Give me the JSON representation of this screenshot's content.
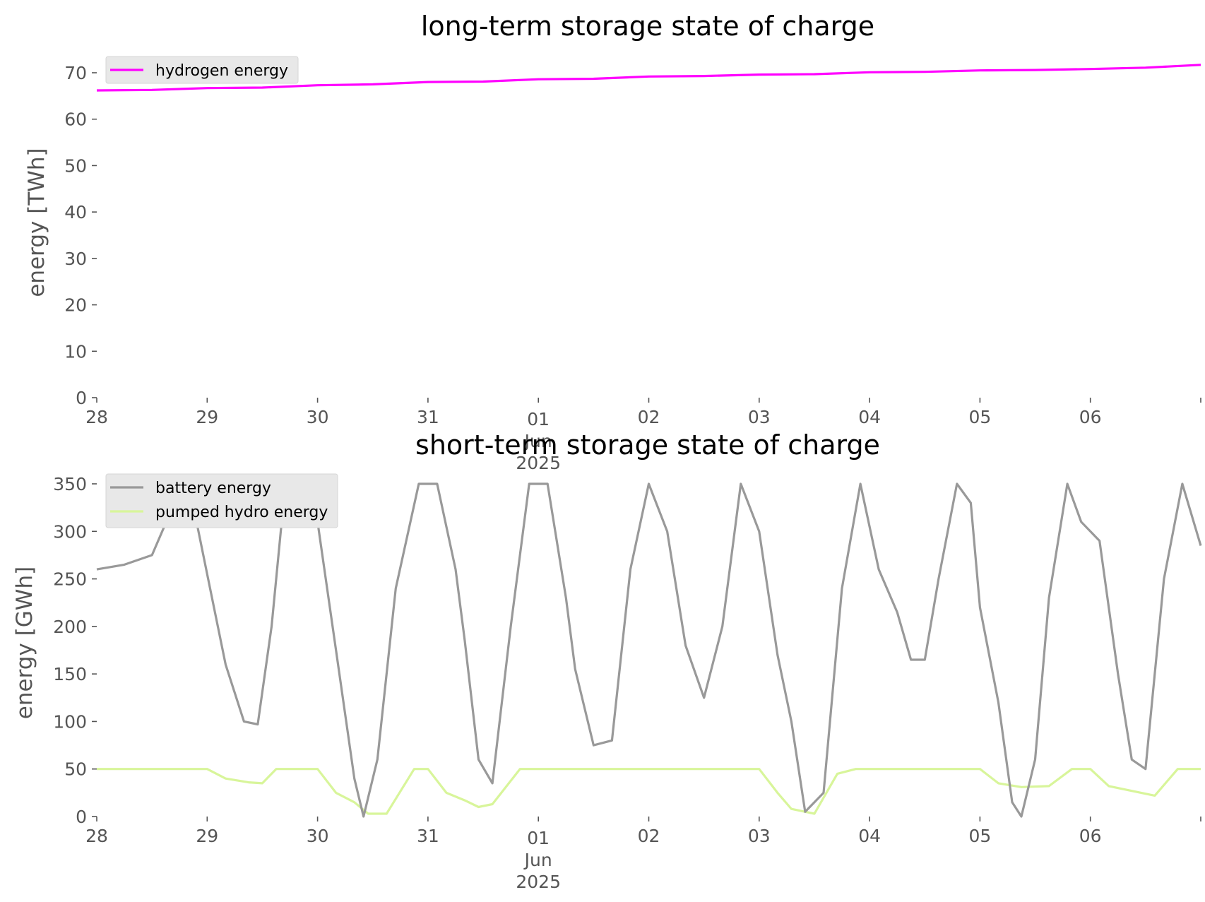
{
  "chart_data": [
    {
      "type": "line",
      "title": "long-term storage state of charge",
      "ylabel": "energy [TWh]",
      "ylim": [
        0,
        70
      ],
      "yticks": [
        "0",
        "10",
        "20",
        "30",
        "40",
        "50",
        "60",
        "70"
      ],
      "xlim": [
        "2025-05-28",
        "2025-06-07"
      ],
      "xticks": [
        "28",
        "29",
        "30",
        "31",
        "01",
        "02",
        "03",
        "04",
        "05",
        "06"
      ],
      "xtick_sublabel": [
        "Jun",
        "2025"
      ],
      "grid": false,
      "legend": "top-left",
      "series": [
        {
          "name": "hydrogen energy",
          "color": "#ff00ff",
          "x": [
            "2025-05-28 00:00",
            "2025-05-28 12:00",
            "2025-05-29 00:00",
            "2025-05-29 12:00",
            "2025-05-30 00:00",
            "2025-05-30 12:00",
            "2025-05-31 00:00",
            "2025-05-31 12:00",
            "2025-06-01 00:00",
            "2025-06-01 12:00",
            "2025-06-02 00:00",
            "2025-06-02 12:00",
            "2025-06-03 00:00",
            "2025-06-03 12:00",
            "2025-06-04 00:00",
            "2025-06-04 12:00",
            "2025-06-05 00:00",
            "2025-06-05 12:00",
            "2025-06-06 00:00",
            "2025-06-06 12:00",
            "2025-06-07 00:00"
          ],
          "y": [
            66.2,
            66.3,
            66.7,
            66.8,
            67.3,
            67.5,
            68.0,
            68.1,
            68.6,
            68.7,
            69.2,
            69.3,
            69.6,
            69.7,
            70.1,
            70.2,
            70.5,
            70.6,
            70.8,
            71.1,
            71.7
          ]
        }
      ]
    },
    {
      "type": "line",
      "title": "short-term storage state of charge",
      "ylabel": "energy [GWh]",
      "ylim": [
        0,
        350
      ],
      "yticks": [
        "0",
        "50",
        "100",
        "150",
        "200",
        "250",
        "300",
        "350"
      ],
      "xlim": [
        "2025-05-28",
        "2025-06-07"
      ],
      "xticks": [
        "28",
        "29",
        "30",
        "31",
        "01",
        "02",
        "03",
        "04",
        "05",
        "06"
      ],
      "xtick_sublabel": [
        "Jun",
        "2025"
      ],
      "grid": false,
      "legend": "top-left",
      "series": [
        {
          "name": "battery energy",
          "color": "#999999",
          "x": [
            "2025-05-28 00:00",
            "2025-05-28 06:00",
            "2025-05-28 12:00",
            "2025-05-28 16:00",
            "2025-05-28 20:00",
            "2025-05-29 00:00",
            "2025-05-29 04:00",
            "2025-05-29 08:00",
            "2025-05-29 11:00",
            "2025-05-29 14:00",
            "2025-05-29 17:00",
            "2025-05-29 21:00",
            "2025-05-30 00:00",
            "2025-05-30 04:00",
            "2025-05-30 08:00",
            "2025-05-30 10:00",
            "2025-05-30 13:00",
            "2025-05-30 17:00",
            "2025-05-30 22:00",
            "2025-05-31 02:00",
            "2025-05-31 06:00",
            "2025-05-31 08:00",
            "2025-05-31 11:00",
            "2025-05-31 14:00",
            "2025-05-31 18:00",
            "2025-05-31 22:00",
            "2025-06-01 02:00",
            "2025-06-01 06:00",
            "2025-06-01 08:00",
            "2025-06-01 12:00",
            "2025-06-01 16:00",
            "2025-06-01 20:00",
            "2025-06-02 00:00",
            "2025-06-02 04:00",
            "2025-06-02 08:00",
            "2025-06-02 12:00",
            "2025-06-02 16:00",
            "2025-06-02 20:00",
            "2025-06-03 00:00",
            "2025-06-03 04:00",
            "2025-06-03 07:00",
            "2025-06-03 10:00",
            "2025-06-03 14:00",
            "2025-06-03 18:00",
            "2025-06-03 22:00",
            "2025-06-04 02:00",
            "2025-06-04 06:00",
            "2025-06-04 09:00",
            "2025-06-04 12:00",
            "2025-06-04 15:00",
            "2025-06-04 19:00",
            "2025-06-04 22:00",
            "2025-06-05 00:00",
            "2025-06-05 04:00",
            "2025-06-05 07:00",
            "2025-06-05 09:00",
            "2025-06-05 12:00",
            "2025-06-05 15:00",
            "2025-06-05 19:00",
            "2025-06-05 22:00",
            "2025-06-06 02:00",
            "2025-06-06 06:00",
            "2025-06-06 09:00",
            "2025-06-06 12:00",
            "2025-06-06 16:00",
            "2025-06-06 20:00",
            "2025-06-07 00:00"
          ],
          "y": [
            260,
            265,
            275,
            320,
            350,
            255,
            160,
            100,
            97,
            200,
            350,
            350,
            310,
            175,
            40,
            0,
            60,
            240,
            350,
            350,
            260,
            185,
            60,
            35,
            200,
            350,
            350,
            230,
            155,
            75,
            80,
            260,
            350,
            300,
            180,
            125,
            200,
            350,
            300,
            170,
            100,
            5,
            25,
            240,
            350,
            260,
            215,
            165,
            165,
            250,
            350,
            330,
            220,
            120,
            15,
            0,
            60,
            230,
            350,
            310,
            290,
            150,
            60,
            50,
            250,
            350,
            285
          ]
        },
        {
          "name": "pumped hydro energy",
          "color": "#d8f59a",
          "x": [
            "2025-05-28 00:00",
            "2025-05-29 00:00",
            "2025-05-29 04:00",
            "2025-05-29 09:00",
            "2025-05-29 12:00",
            "2025-05-29 15:00",
            "2025-05-30 00:00",
            "2025-05-30 04:00",
            "2025-05-30 08:00",
            "2025-05-30 11:00",
            "2025-05-30 15:00",
            "2025-05-30 21:00",
            "2025-05-31 00:00",
            "2025-05-31 04:00",
            "2025-05-31 08:00",
            "2025-05-31 11:00",
            "2025-05-31 14:00",
            "2025-05-31 20:00",
            "2025-06-02 00:00",
            "2025-06-03 00:00",
            "2025-06-03 04:00",
            "2025-06-03 07:00",
            "2025-06-03 12:00",
            "2025-06-03 17:00",
            "2025-06-03 21:00",
            "2025-06-05 00:00",
            "2025-06-05 04:00",
            "2025-06-05 09:00",
            "2025-06-05 15:00",
            "2025-06-05 20:00",
            "2025-06-06 00:00",
            "2025-06-06 04:00",
            "2025-06-06 09:00",
            "2025-06-06 14:00",
            "2025-06-06 19:00",
            "2025-06-07 00:00"
          ],
          "y": [
            50,
            50,
            40,
            36,
            35,
            50,
            50,
            25,
            15,
            3,
            3,
            50,
            50,
            25,
            17,
            10,
            13,
            50,
            50,
            50,
            25,
            8,
            3,
            45,
            50,
            50,
            35,
            31,
            32,
            50,
            50,
            32,
            27,
            22,
            50,
            50
          ]
        }
      ]
    }
  ]
}
